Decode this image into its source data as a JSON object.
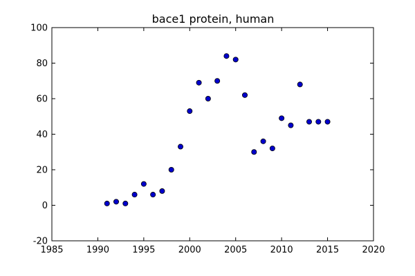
{
  "chart_data": {
    "type": "scatter",
    "title": "bace1 protein, human",
    "xlabel": "",
    "ylabel": "",
    "xlim": [
      1985,
      2020
    ],
    "ylim": [
      -20,
      100
    ],
    "xticks": [
      1985,
      1990,
      1995,
      2000,
      2005,
      2010,
      2015,
      2020
    ],
    "yticks": [
      -20,
      0,
      20,
      40,
      60,
      80,
      100
    ],
    "grid": false,
    "colors": {
      "marker": "#0000cc",
      "edge": "#000000"
    },
    "x": [
      1991,
      1992,
      1993,
      1994,
      1995,
      1996,
      1997,
      1998,
      1999,
      2000,
      2001,
      2002,
      2003,
      2004,
      2005,
      2006,
      2007,
      2008,
      2009,
      2010,
      2011,
      2012,
      2013,
      2014,
      2015
    ],
    "y": [
      1,
      2,
      1,
      6,
      12,
      6,
      8,
      20,
      33,
      53,
      69,
      60,
      70,
      84,
      82,
      62,
      30,
      36,
      32,
      49,
      45,
      68,
      47,
      47,
      47
    ]
  }
}
